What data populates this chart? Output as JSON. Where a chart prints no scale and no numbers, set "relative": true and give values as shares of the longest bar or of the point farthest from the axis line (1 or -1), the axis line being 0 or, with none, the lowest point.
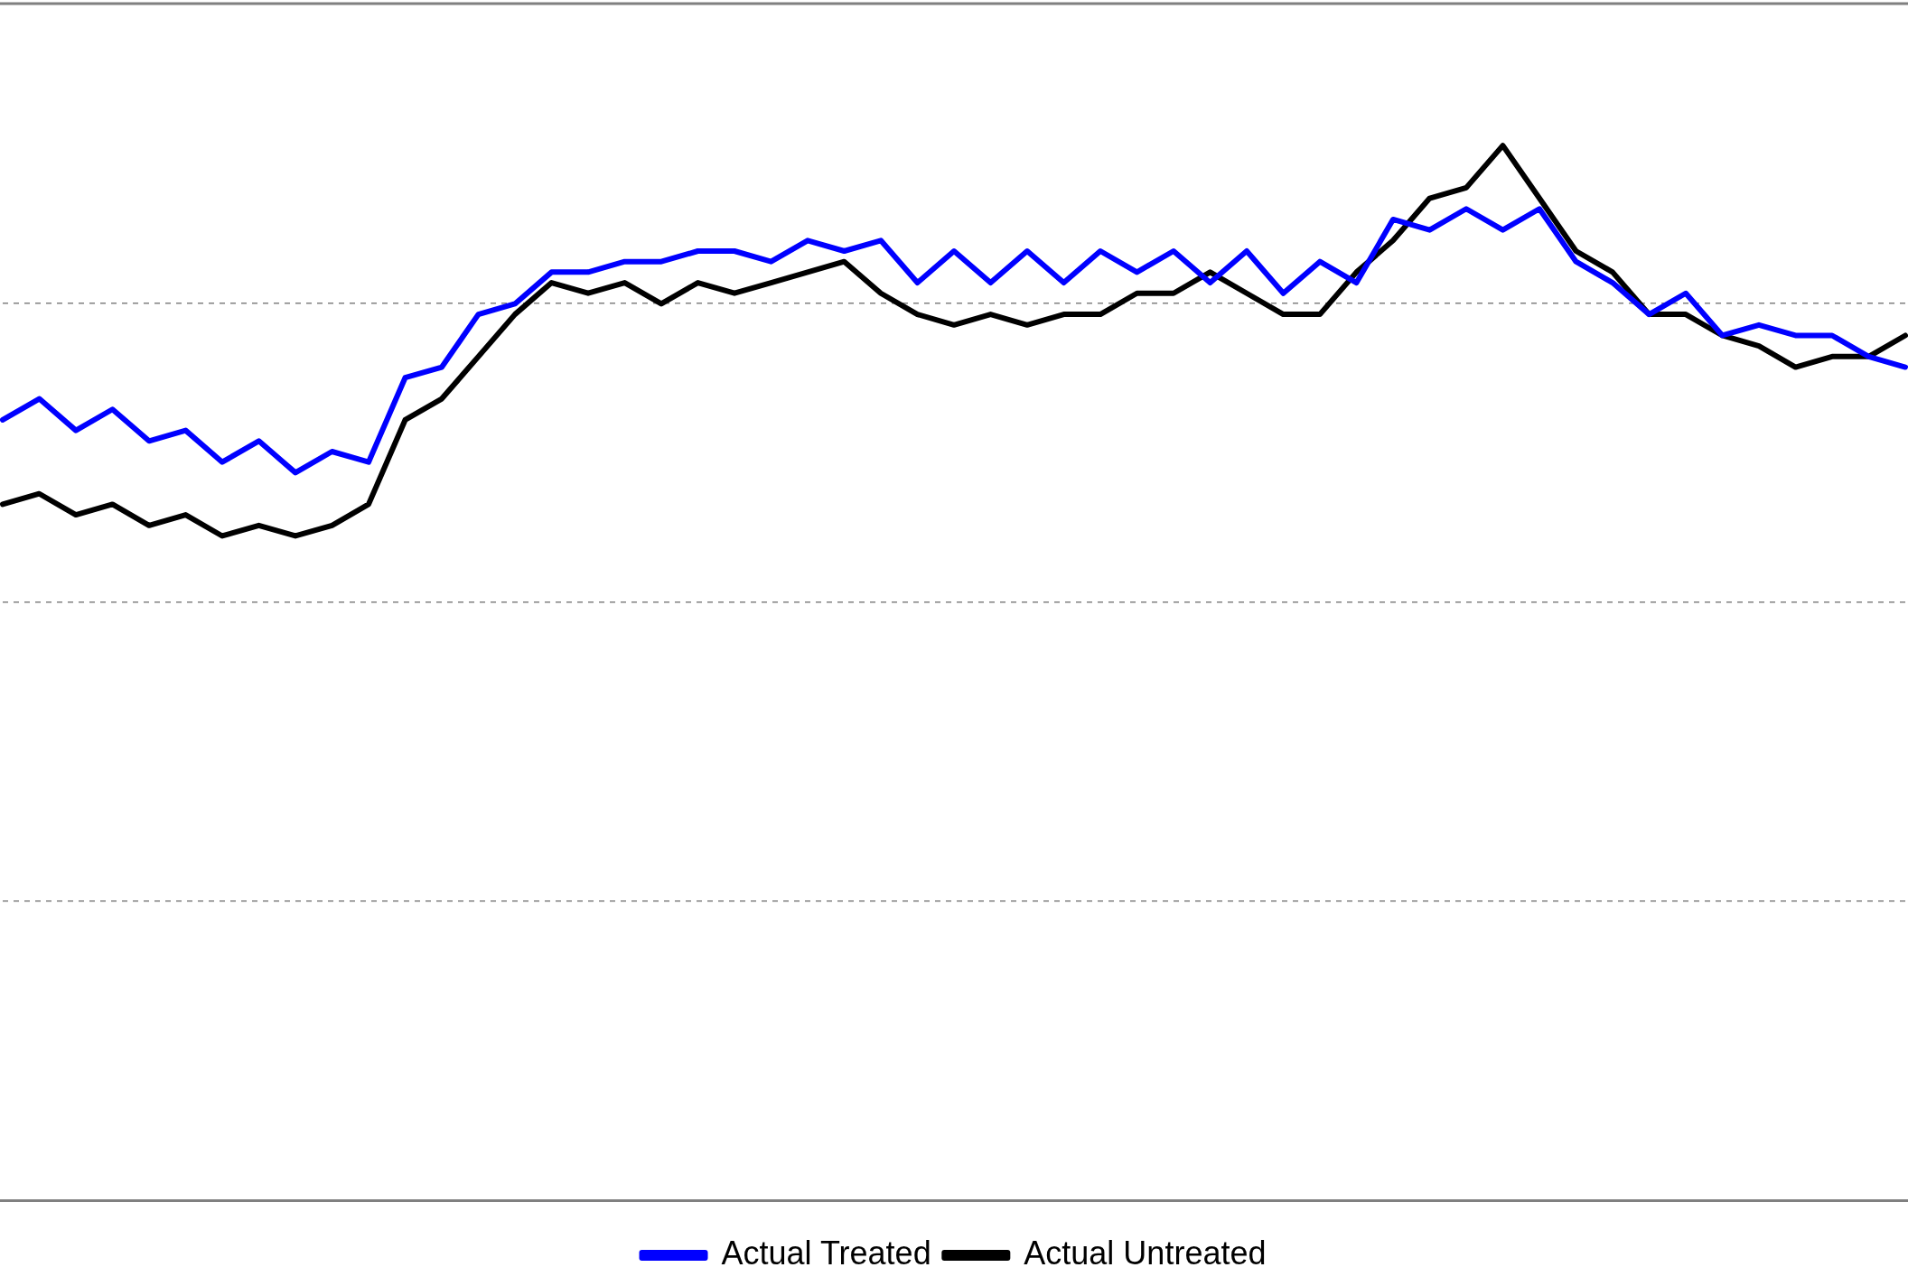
{
  "chart_data": {
    "type": "line",
    "relative": true,
    "grid": "y",
    "legend": "bottom",
    "marker": "none",
    "line_style": "solid",
    "categories": [
      null,
      null,
      null,
      null,
      null,
      null,
      null,
      null,
      null,
      null,
      null,
      null,
      null,
      null,
      null,
      null,
      null,
      null,
      null,
      null,
      null,
      null,
      null,
      null,
      null,
      null,
      null,
      null,
      null,
      null,
      null,
      null,
      null,
      null,
      null,
      null,
      null,
      null,
      null,
      null,
      null,
      null,
      null,
      null,
      null,
      null,
      null,
      null,
      null,
      null,
      null,
      null,
      null
    ],
    "series": [
      {
        "name": "Actual Treated",
        "color": "#0000ff",
        "values": [
          0.74,
          0.76,
          0.73,
          0.75,
          0.72,
          0.73,
          0.7,
          0.72,
          0.69,
          0.71,
          0.7,
          0.78,
          0.79,
          0.84,
          0.85,
          0.88,
          0.88,
          0.89,
          0.89,
          0.9,
          0.9,
          0.89,
          0.91,
          0.9,
          0.91,
          0.87,
          0.9,
          0.87,
          0.9,
          0.87,
          0.9,
          0.88,
          0.9,
          0.87,
          0.9,
          0.86,
          0.89,
          0.87,
          0.93,
          0.92,
          0.94,
          0.92,
          0.94,
          0.89,
          0.87,
          0.84,
          0.86,
          0.82,
          0.83,
          0.82,
          0.82,
          0.8,
          0.79
        ]
      },
      {
        "name": "Actual Untreated",
        "color": "#000000",
        "values": [
          0.66,
          0.67,
          0.65,
          0.66,
          0.64,
          0.65,
          0.63,
          0.64,
          0.63,
          0.64,
          0.66,
          0.74,
          0.76,
          0.8,
          0.84,
          0.87,
          0.86,
          0.87,
          0.85,
          0.87,
          0.86,
          0.87,
          0.88,
          0.89,
          0.86,
          0.84,
          0.83,
          0.84,
          0.83,
          0.84,
          0.84,
          0.86,
          0.86,
          0.88,
          0.86,
          0.84,
          0.84,
          0.88,
          0.91,
          0.95,
          0.96,
          1,
          0.95,
          0.9,
          0.88,
          0.84,
          0.84,
          0.82,
          0.81,
          0.79,
          0.8,
          0.8,
          0.82
        ]
      }
    ]
  }
}
